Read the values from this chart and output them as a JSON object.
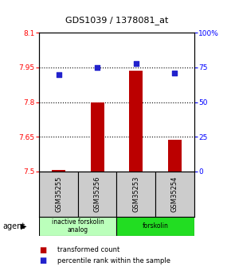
{
  "title": "GDS1039 / 1378081_at",
  "samples": [
    "GSM35255",
    "GSM35256",
    "GSM35253",
    "GSM35254"
  ],
  "bar_values": [
    7.505,
    7.8,
    7.935,
    7.638
  ],
  "bar_base": 7.5,
  "percentile_values": [
    70,
    75,
    78,
    71
  ],
  "percentile_scale_min": 0,
  "percentile_scale_max": 100,
  "ylim": [
    7.5,
    8.1
  ],
  "y_ticks": [
    7.5,
    7.65,
    7.8,
    7.95,
    8.1
  ],
  "y_tick_labels": [
    "7.5",
    "7.65",
    "7.8",
    "7.95",
    "8.1"
  ],
  "right_y_ticks": [
    0,
    25,
    50,
    75,
    100
  ],
  "right_y_tick_labels": [
    "0",
    "25",
    "50",
    "75",
    "100%"
  ],
  "dotted_lines": [
    7.65,
    7.8,
    7.95
  ],
  "bar_color": "#bb0000",
  "dot_color": "#2222cc",
  "agent_groups": [
    {
      "label": "inactive forskolin\nanalog",
      "color": "#bbffbb",
      "span": [
        0,
        2
      ]
    },
    {
      "label": "forskolin",
      "color": "#22dd22",
      "span": [
        2,
        4
      ]
    }
  ],
  "legend_bar_label": "transformed count",
  "legend_dot_label": "percentile rank within the sample",
  "bar_width": 0.35
}
